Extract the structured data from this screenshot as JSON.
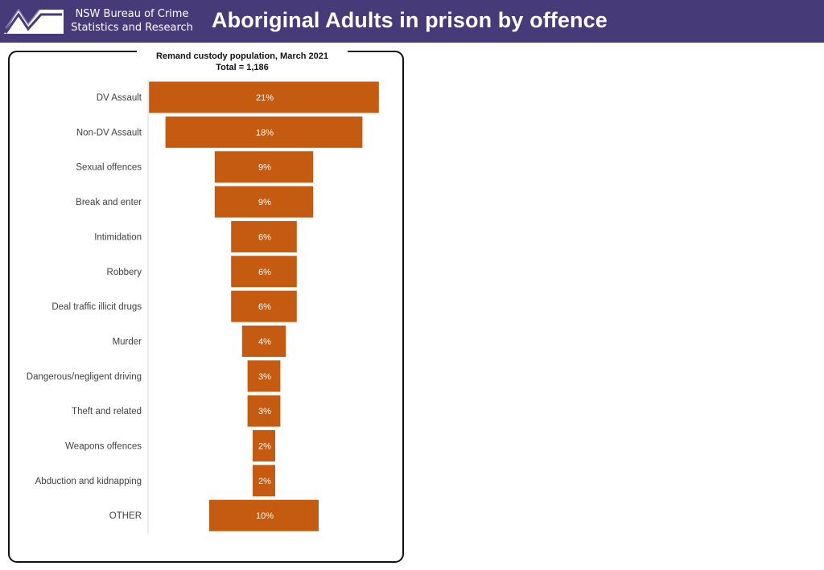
{
  "header": {
    "org_line1": "NSW Bureau of Crime",
    "org_line2": "Statistics and Research",
    "title": "Aboriginal Adults in prison by offence",
    "bg_color": "#463a78"
  },
  "chart_data": {
    "type": "bar",
    "orientation": "horizontal-centered",
    "title": "Remand custody population, March 2021",
    "subtitle": "Total = 1,186",
    "categories": [
      "DV Assault",
      "Non-DV Assault",
      "Sexual offences",
      "Break and enter",
      "Intimidation",
      "Robbery",
      "Deal traffic illicit drugs",
      "Murder",
      "Dangerous/negligent driving",
      "Theft and related",
      "Weapons offences",
      "Abduction and kidnapping",
      "OTHER"
    ],
    "values": [
      21,
      18,
      9,
      9,
      6,
      6,
      6,
      4,
      3,
      3,
      2,
      2,
      10
    ],
    "labels": [
      "21%",
      "18%",
      "9%",
      "9%",
      "6%",
      "6%",
      "6%",
      "4%",
      "3%",
      "3%",
      "2%",
      "2%",
      "10%"
    ],
    "value_unit": "%",
    "bar_color": "#c55a11",
    "label_color": "#ffffff",
    "xlabel": "",
    "ylabel": ""
  }
}
